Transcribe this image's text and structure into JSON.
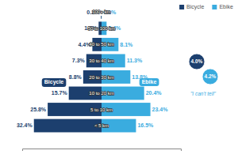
{
  "chart_data": {
    "type": "bar",
    "orientation": "horizontal",
    "categories": [
      "< 5 km",
      "5 to 10 km",
      "10 to 20 km",
      "20 to 30 km",
      "30 to 40 km",
      "40 to 50 km",
      "50 to 100 km",
      "100+ km"
    ],
    "series": [
      {
        "name": "Bicycle",
        "color": "#1c3f6e",
        "values": [
          32.4,
          25.8,
          15.7,
          8.8,
          7.3,
          4.4,
          1.4,
          0.3
        ],
        "value_labels": [
          "32.4%",
          "25.8%",
          "15.7%",
          "8.8%",
          "7.3%",
          "4.4%",
          "1.4%",
          "0.3%"
        ],
        "cant_tell": 4.0,
        "cant_tell_label": "4.0%"
      },
      {
        "name": "Ebike",
        "color": "#3aacdf",
        "values": [
          16.5,
          23.4,
          20.4,
          13.8,
          11.3,
          8.1,
          2.4,
          0.1
        ],
        "value_labels": [
          "16.5%",
          "23.4%",
          "20.4%",
          "13.8%",
          "11.3%",
          "8.1%",
          "2.4%",
          "0.1%"
        ],
        "cant_tell": 4.2,
        "cant_tell_label": "4.2%"
      }
    ],
    "annotations": [
      {
        "text": "Bicycle"
      },
      {
        "text": "Ebike"
      },
      {
        "text": "\"I can't tell\""
      }
    ],
    "xlim": [
      -38,
      38
    ],
    "data_labels": true,
    "tick_labels": "y",
    "legend": "upper right"
  }
}
